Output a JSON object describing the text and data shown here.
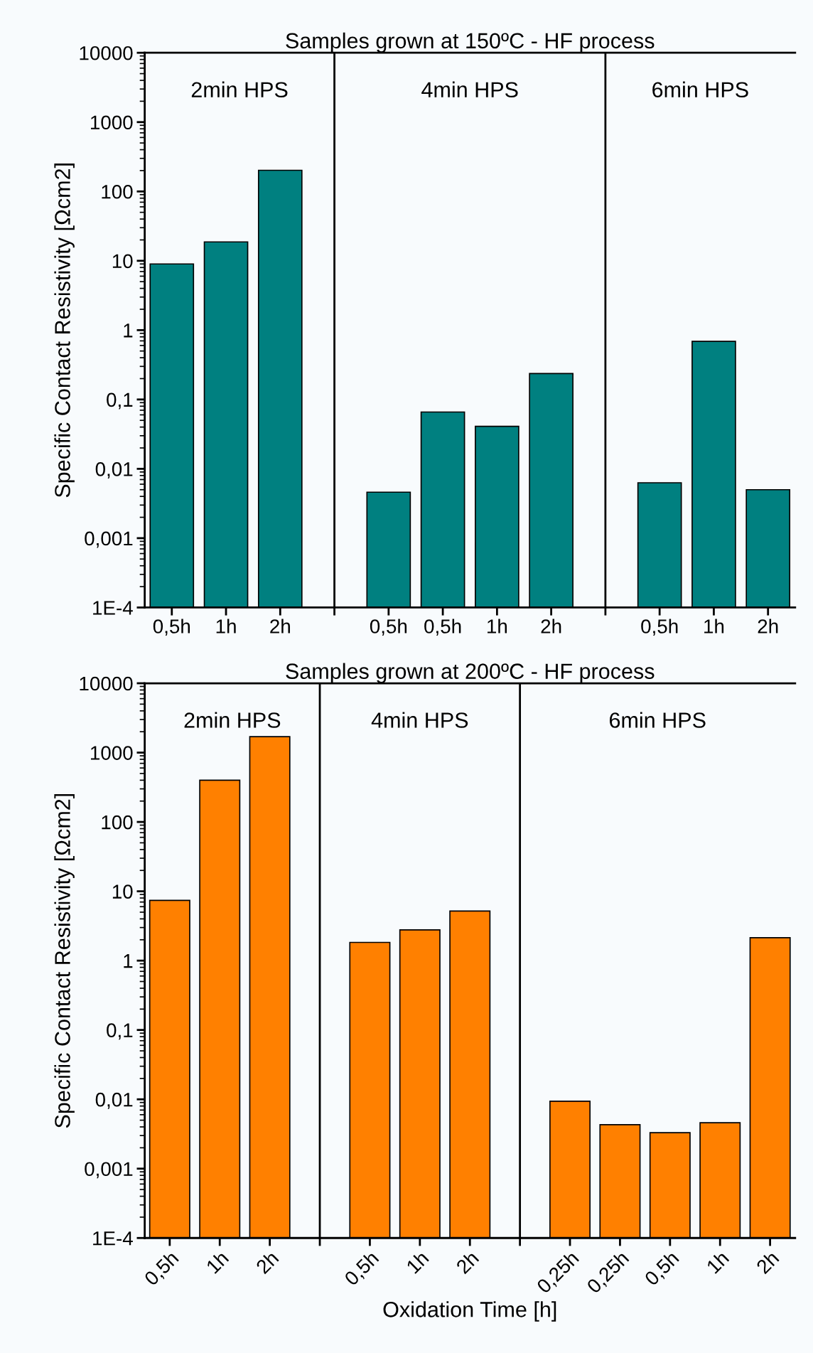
{
  "chart_data": [
    {
      "type": "bar",
      "title": "Samples grown at 150ºC - HF process",
      "ylabel": "Specific Contact Resistivity [Ωcm2]",
      "categories": [
        "0,5h",
        "1h",
        "2h",
        null,
        "0,5h",
        "0,5h",
        "1h",
        "2h",
        null,
        "0,5h",
        "1h",
        "2h"
      ],
      "values": [
        9.0,
        18.7,
        202,
        null,
        0.0046,
        0.066,
        0.041,
        0.237,
        null,
        0.0063,
        0.69,
        0.005
      ],
      "color": "#008080",
      "log": "y",
      "ylim": [
        0.0001,
        10000
      ],
      "yticks": [
        {
          "value": 0.0001,
          "label": "1E-4"
        },
        {
          "value": 0.001,
          "label": "0,001"
        },
        {
          "value": 0.01,
          "label": "0,01"
        },
        {
          "value": 0.1,
          "label": "0,1"
        },
        1,
        10,
        100,
        1000,
        10000
      ],
      "annotations": [
        "2min HPS",
        "4min HPS",
        "6min HPS"
      ]
    },
    {
      "type": "bar",
      "title": "Samples grown at 200ºC - HF process",
      "ylabel": "Specific Contact Resistivity [Ωcm2]",
      "xlabel": "Oxidation Time [h]",
      "categories": [
        "0,5h",
        "1h",
        "2h",
        null,
        "0,5h",
        "1h",
        "2h",
        null,
        "0,25h",
        "0,25h",
        "0,5h",
        "1h",
        "2h"
      ],
      "values": [
        7.4,
        400,
        1700,
        null,
        1.83,
        2.78,
        5.2,
        null,
        0.0094,
        0.0043,
        0.0033,
        0.0046,
        2.14
      ],
      "color": "#ff8000",
      "log": "y",
      "ylim": [
        0.0001,
        10000
      ],
      "yticks": [
        {
          "value": 0.0001,
          "label": "1E-4"
        },
        {
          "value": 0.001,
          "label": "0,001"
        },
        {
          "value": 0.01,
          "label": "0,01"
        },
        {
          "value": 0.1,
          "label": "0,1"
        },
        1,
        10,
        100,
        1000,
        10000
      ],
      "annotations": [
        "2min HPS",
        "4min HPS",
        "6min HPS"
      ]
    }
  ]
}
